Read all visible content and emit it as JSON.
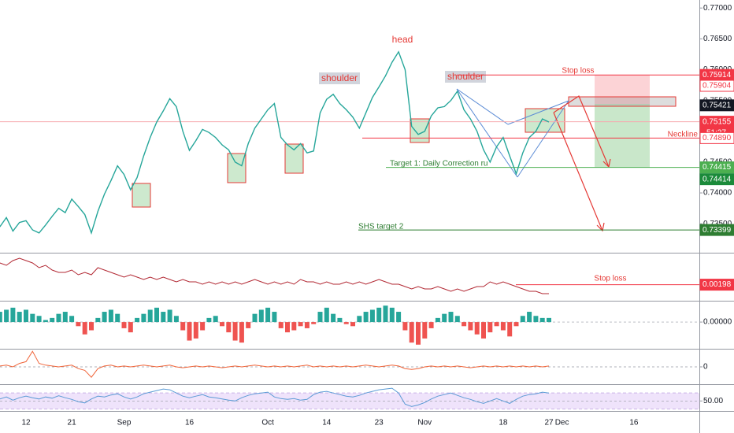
{
  "chart_data": [
    {
      "type": "line",
      "categories": [
        null,
        null,
        null,
        null,
        "12",
        null,
        null,
        null,
        null,
        null,
        null,
        "21",
        null,
        null,
        null,
        null,
        null,
        null,
        null,
        "Sep",
        null,
        null,
        null,
        null,
        null,
        null,
        null,
        null,
        null,
        "16",
        null,
        null,
        null,
        null,
        null,
        null,
        null,
        null,
        null,
        null,
        null,
        "Oct",
        null,
        null,
        null,
        null,
        null,
        null,
        null,
        null,
        "14",
        null,
        null,
        null,
        null,
        null,
        null,
        null,
        "23",
        null,
        null,
        null,
        null,
        null,
        null,
        "Nov",
        null,
        null,
        null,
        null,
        null,
        null,
        null,
        null,
        null,
        null,
        null,
        "18",
        null,
        null,
        null,
        null,
        null,
        null,
        "27",
        null,
        "Dec",
        null,
        null,
        null,
        null,
        null,
        null,
        null,
        null,
        null,
        null,
        "16"
      ],
      "values": [
        0.7345,
        0.736,
        0.7338,
        0.7352,
        0.7355,
        0.734,
        0.7335,
        0.7348,
        0.7362,
        0.7375,
        0.7368,
        0.739,
        0.7378,
        0.7365,
        0.7335,
        0.737,
        0.7398,
        0.742,
        0.7444,
        0.743,
        0.7405,
        0.7425,
        0.746,
        0.749,
        0.7515,
        0.7533,
        0.7553,
        0.754,
        0.75,
        0.7469,
        0.7485,
        0.7503,
        0.7498,
        0.749,
        0.7478,
        0.747,
        0.745,
        0.7444,
        0.748,
        0.7505,
        0.752,
        0.7535,
        0.7545,
        0.749,
        0.7478,
        0.747,
        0.748,
        0.7465,
        0.7468,
        0.753,
        0.7552,
        0.756,
        0.7545,
        0.7535,
        0.7523,
        0.7505,
        0.753,
        0.7555,
        0.7572,
        0.759,
        0.7612,
        0.7629,
        0.76,
        0.7508,
        0.7495,
        0.75,
        0.7525,
        0.7538,
        0.754,
        0.755,
        0.7565,
        0.7535,
        0.752,
        0.75,
        0.747,
        0.745,
        0.7475,
        0.749,
        0.746,
        0.7431,
        0.7465,
        0.749,
        0.75,
        0.752,
        0.7515,
        null,
        null,
        null,
        null,
        null,
        null,
        null,
        null,
        null,
        null,
        null,
        null,
        null
      ],
      "color": "#26a69a",
      "ylim": [
        0.7303,
        0.7713
      ],
      "yticks": [
        {
          "value": 0.77,
          "label": "0.77000"
        },
        {
          "value": 0.765,
          "label": "0.76500"
        },
        {
          "value": 0.76,
          "label": "0.76000"
        },
        {
          "value": 0.755,
          "label": "0.75500"
        },
        {
          "value": 0.75,
          "label": "0.75000"
        },
        {
          "value": 0.745,
          "label": "0.74500"
        },
        {
          "value": 0.74,
          "label": "0.74000"
        },
        {
          "value": 0.735,
          "label": "0.73500"
        }
      ],
      "levels": [
        0.75914,
        0.75904,
        0.75421,
        0.75155,
        {
          "value": 0.7489,
          "label": "0.74890"
        },
        0.74415,
        0.74414,
        0.73399
      ],
      "level_colors": [
        "#f23645",
        "#f23645",
        "#131722",
        "#f23645",
        "#f23645",
        "#4caf50",
        "#1b8a3a",
        "#2e7d32"
      ],
      "level_filled": [
        true,
        false,
        true,
        true,
        false,
        true,
        true,
        true
      ],
      "countdown": "51:27",
      "annotations": [
        "head",
        "shoulder",
        "shoulder",
        "Stop loss",
        "Neckline",
        "Target 1: Daily Correction ru",
        "SHS target 2"
      ]
    },
    {
      "type": "line",
      "values": [
        0.0029,
        0.0028,
        0.003,
        0.0031,
        0.003,
        0.0029,
        0.0027,
        0.0028,
        0.0026,
        0.0025,
        0.0025,
        0.0026,
        0.0024,
        0.0025,
        0.0024,
        0.0027,
        0.0026,
        0.0025,
        0.0024,
        0.0023,
        0.0024,
        0.0023,
        0.0022,
        0.0023,
        0.0022,
        0.0023,
        0.0022,
        0.0021,
        0.0022,
        0.0021,
        0.0021,
        0.002,
        0.0021,
        0.002,
        0.0021,
        0.002,
        0.0021,
        0.002,
        0.0021,
        0.0022,
        0.0021,
        0.002,
        0.0021,
        0.002,
        0.0021,
        0.002,
        0.0022,
        0.0021,
        0.0021,
        0.002,
        0.0021,
        0.002,
        0.002,
        0.0021,
        0.002,
        0.0021,
        0.002,
        0.0021,
        0.0022,
        0.0021,
        0.002,
        0.002,
        0.0019,
        0.0018,
        0.0019,
        0.0018,
        0.0018,
        0.0019,
        0.0018,
        0.0017,
        0.0018,
        0.0017,
        0.0018,
        0.0019,
        0.0019,
        0.0021,
        0.002,
        0.0021,
        0.002,
        0.0019,
        0.0018,
        0.0017,
        0.0017,
        0.0016,
        0.0016,
        null,
        null,
        null,
        null,
        null,
        null,
        null,
        null,
        null,
        null,
        null,
        null,
        null
      ],
      "color": "#b22833",
      "ylim": [
        0.0013,
        0.0033
      ],
      "levels": [
        0.00198
      ],
      "level_colors": [
        "#f23645"
      ],
      "annotations": [
        "Stop loss"
      ]
    },
    {
      "type": "bar",
      "values": [
        0.0005,
        0.0006,
        0.0007,
        0.0005,
        0.0006,
        0.0004,
        0.0003,
        0.0001,
        0.0002,
        0.0004,
        0.0005,
        0.0003,
        -0.0002,
        -0.0006,
        -0.0004,
        0.0002,
        0.0005,
        0.0006,
        0.0004,
        -0.0003,
        -0.0005,
        0.0002,
        0.0004,
        0.0006,
        0.0007,
        0.0005,
        0.0006,
        0.0003,
        -0.0004,
        -0.0009,
        -0.0008,
        -0.0004,
        0.0002,
        0.0003,
        -0.0002,
        -0.0005,
        -0.0009,
        -0.001,
        -0.0003,
        0.0004,
        0.0006,
        0.0007,
        0.0005,
        -0.0003,
        -0.0005,
        -0.0004,
        -0.0002,
        -0.0003,
        -0.0001,
        0.0005,
        0.0007,
        0.0004,
        0.0002,
        -0.0001,
        -0.0002,
        0.0003,
        0.0005,
        0.0006,
        0.0007,
        0.0008,
        0.0007,
        0.0005,
        -0.0004,
        -0.001,
        -0.0011,
        -0.0008,
        -0.0003,
        0.0002,
        0.0004,
        0.0005,
        0.0003,
        -0.0002,
        -0.0004,
        -0.0006,
        -0.0008,
        -0.0005,
        -0.0002,
        -0.0004,
        -0.0007,
        -0.0002,
        0.0003,
        0.0005,
        0.0003,
        0.0002,
        0.0002,
        null,
        null,
        null,
        null,
        null,
        null,
        null,
        null,
        null,
        null,
        null,
        null,
        null
      ],
      "color_up": "#26a69a",
      "color_down": "#ef5350",
      "ylim": [
        -0.0013,
        0.001
      ],
      "yticks": [
        {
          "value": 0,
          "label": "0.00000"
        }
      ]
    },
    {
      "type": "line",
      "values": [
        0.05,
        0.1,
        0.0,
        0.2,
        0.3,
        0.9,
        0.2,
        0.1,
        0.05,
        0.0,
        0.05,
        0.1,
        -0.1,
        -0.2,
        -0.6,
        -0.1,
        0.05,
        0.1,
        0.0,
        0.05,
        0.0,
        0.05,
        0.1,
        0.05,
        0.0,
        0.05,
        0.1,
        0.0,
        -0.05,
        0.0,
        0.05,
        0.0,
        0.05,
        0.0,
        -0.05,
        0.0,
        0.05,
        0.0,
        0.05,
        0.1,
        0.05,
        0.0,
        0.05,
        0.0,
        0.05,
        0.0,
        0.05,
        0.1,
        0.0,
        0.05,
        0.0,
        0.05,
        0.0,
        0.05,
        0.0,
        0.05,
        0.1,
        0.05,
        0.0,
        0.05,
        0.1,
        0.05,
        -0.1,
        -0.15,
        -0.1,
        0.0,
        0.05,
        0.0,
        0.05,
        0.0,
        0.05,
        0.0,
        -0.05,
        0.0,
        0.05,
        0.0,
        0.05,
        0.0,
        0.05,
        0.0,
        0.05,
        0.0,
        0.05,
        0.0,
        0.05,
        null,
        null,
        null,
        null,
        null,
        null,
        null,
        null,
        null,
        null,
        null,
        null,
        null
      ],
      "color": "#f0653a",
      "ylim": [
        -1,
        1
      ],
      "yticks": [
        0
      ]
    },
    {
      "type": "line",
      "values": [
        55,
        60,
        52,
        58,
        62,
        58,
        55,
        60,
        57,
        63,
        58,
        54,
        48,
        45,
        55,
        62,
        60,
        65,
        68,
        60,
        55,
        60,
        68,
        72,
        76,
        80,
        78,
        70,
        62,
        58,
        62,
        66,
        60,
        58,
        55,
        52,
        50,
        58,
        64,
        68,
        70,
        72,
        60,
        56,
        54,
        56,
        52,
        54,
        66,
        72,
        74,
        70,
        66,
        62,
        60,
        64,
        70,
        74,
        78,
        80,
        82,
        70,
        42,
        36,
        40,
        46,
        55,
        62,
        66,
        70,
        64,
        58,
        54,
        48,
        44,
        50,
        56,
        50,
        44,
        54,
        62,
        66,
        68,
        72,
        70,
        null,
        null,
        null,
        null,
        null,
        null,
        null,
        null,
        null,
        null,
        null,
        null,
        null
      ],
      "color": "#5b9bd5",
      "band": [
        30,
        70
      ],
      "band_color": "#efe3fb",
      "ylim": [
        25,
        90
      ],
      "yticks": [
        {
          "value": 50,
          "label": "50.00"
        }
      ]
    }
  ]
}
